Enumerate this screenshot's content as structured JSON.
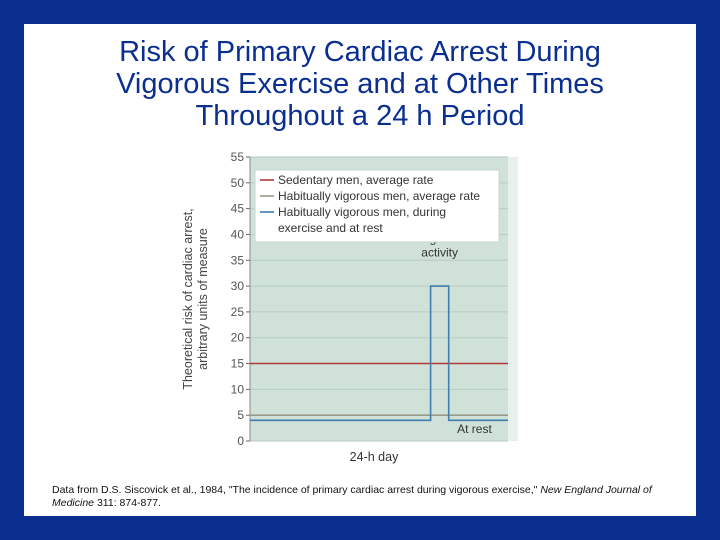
{
  "slide": {
    "title_lines": [
      "Risk of Primary Cardiac Arrest During",
      "Vigorous Exercise and at Other Times",
      "Throughout a 24 h Period"
    ],
    "citation": {
      "text_before": "Data from D.S. Siscovick et al., 1984, \"The incidence of primary cardiac arrest during vigorous exercise,\" ",
      "journal": "New England Journal of Medicine",
      "text_after": " 311: 874-877."
    },
    "colors": {
      "background": "#0b2f8f",
      "title": "#0b2f8f",
      "plot_bg": "#cfe1d8",
      "sedentary": "#b03a3a",
      "habitual_vigorous": "#9a9a8a",
      "vigorous_during_exercise": "#3f7fae"
    }
  },
  "chart_data": {
    "type": "line",
    "title": "",
    "ylabel_lines": [
      "Theoretical risk of cardiac arrest,",
      "arbitrary units of measure"
    ],
    "xlabel": "24-h day",
    "ylim": [
      0,
      55
    ],
    "yticks": [
      "0",
      "5",
      "10",
      "15",
      "20",
      "25",
      "30",
      "35",
      "40",
      "45",
      "50",
      "55"
    ],
    "grid": true,
    "legend_position": "top-right",
    "series": [
      {
        "name": "Sedentary men, average rate",
        "color": "#b03a3a",
        "points": [
          [
            0,
            15
          ],
          [
            1,
            15
          ]
        ]
      },
      {
        "name": "Habitually vigorous men, average rate",
        "color": "#9a9a8a",
        "points": [
          [
            0,
            5
          ],
          [
            1,
            5
          ]
        ]
      },
      {
        "name_lines": [
          "Habitually vigorous men, during",
          "exercise and at rest"
        ],
        "color": "#3f7fae",
        "points": [
          [
            0,
            4
          ],
          [
            0.7,
            4
          ],
          [
            0.7,
            30
          ],
          [
            0.77,
            30
          ],
          [
            0.77,
            4
          ],
          [
            1,
            4
          ]
        ]
      }
    ],
    "annotations": [
      {
        "lines": [
          "During intense",
          "activity"
        ],
        "x": 0.735,
        "y": 35
      },
      {
        "lines": [
          "At rest"
        ],
        "x": 0.87,
        "y": 0
      }
    ]
  }
}
